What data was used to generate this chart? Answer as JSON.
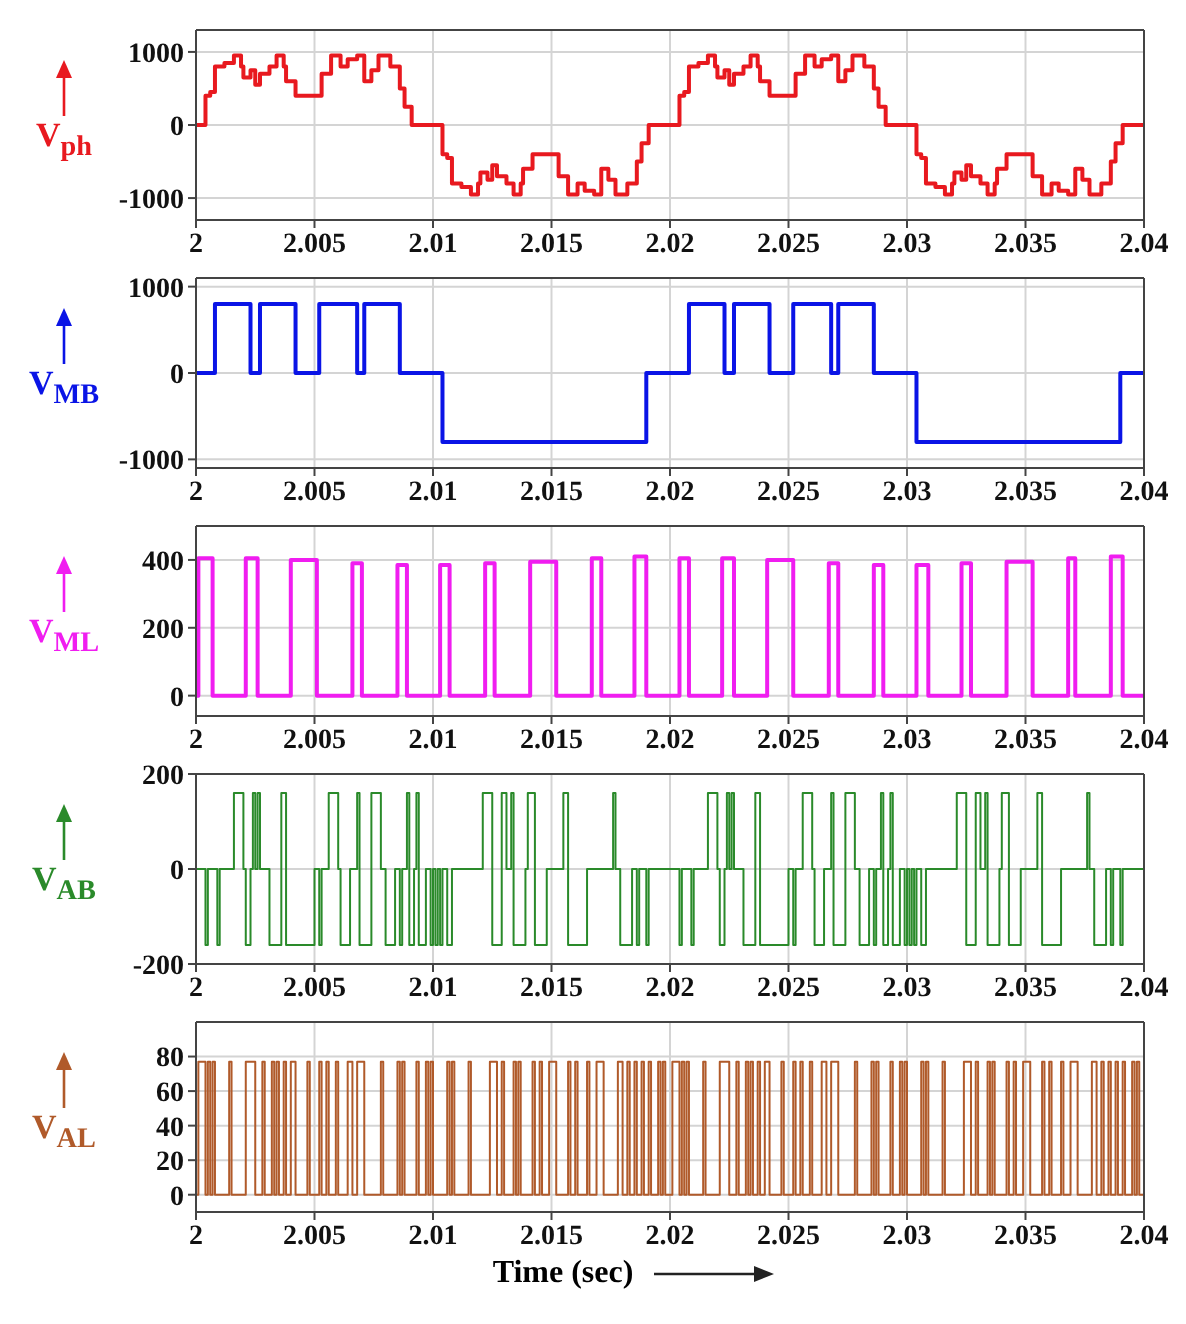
{
  "chart_data": [
    {
      "type": "step",
      "ylabel": "V$_{ph}$",
      "xlim": [
        2,
        2.04
      ],
      "ylim": [
        -1300,
        1300
      ],
      "xticks": [
        2,
        2.005,
        2.01,
        2.015,
        2.02,
        2.025,
        2.03,
        2.035,
        2.04
      ],
      "yticks": [
        -1000,
        0,
        1000
      ],
      "grid": true,
      "x": [
        2,
        2.0004,
        2.0006,
        2.0008,
        2.0012,
        2.0016,
        2.0019,
        2.002,
        2.0023,
        2.0025,
        2.0027,
        2.0031,
        2.0034,
        2.0037,
        2.0038,
        2.0042,
        2.0053,
        2.0057,
        2.0061,
        2.0064,
        2.0068,
        2.0071,
        2.0074,
        2.0077,
        2.0082,
        2.0086,
        2.0088,
        2.0091,
        2.01,
        2.0104,
        2.0106,
        2.0108,
        2.0112,
        2.0116,
        2.0119,
        2.012,
        2.0123,
        2.0125,
        2.0127,
        2.0131,
        2.0134,
        2.0137,
        2.0138,
        2.0142,
        2.0153,
        2.0157,
        2.0161,
        2.0164,
        2.0168,
        2.0171,
        2.0174,
        2.0177,
        2.0182,
        2.0186,
        2.0188,
        2.0191,
        2.02,
        2.0204,
        2.0206,
        2.0208,
        2.0212,
        2.0216,
        2.0219,
        2.022,
        2.0223,
        2.0225,
        2.0227,
        2.0231,
        2.0234,
        2.0237,
        2.0238,
        2.0242,
        2.0253,
        2.0257,
        2.0261,
        2.0264,
        2.0268,
        2.0271,
        2.0274,
        2.0277,
        2.0282,
        2.0286,
        2.0288,
        2.0291,
        2.03,
        2.0304,
        2.0306,
        2.0308,
        2.0312,
        2.0316,
        2.0319,
        2.032,
        2.0323,
        2.0325,
        2.0327,
        2.0331,
        2.0334,
        2.0337,
        2.0338,
        2.0342,
        2.0353,
        2.0357,
        2.0361,
        2.0364,
        2.0368,
        2.0371,
        2.0374,
        2.0377,
        2.0382,
        2.0386,
        2.0388,
        2.0391,
        2.04
      ],
      "series": [
        {
          "color": "#e8191f",
          "values": [
            0,
            400,
            450,
            800,
            850,
            950,
            800,
            650,
            750,
            550,
            700,
            800,
            950,
            800,
            600,
            400,
            700,
            950,
            800,
            900,
            950,
            600,
            750,
            950,
            800,
            500,
            250,
            0,
            0,
            -400,
            -450,
            -800,
            -850,
            -950,
            -800,
            -650,
            -750,
            -550,
            -700,
            -800,
            -950,
            -800,
            -600,
            -400,
            -700,
            -950,
            -800,
            -900,
            -950,
            -600,
            -750,
            -950,
            -800,
            -500,
            -250,
            0,
            0,
            400,
            450,
            800,
            850,
            950,
            800,
            650,
            750,
            550,
            700,
            800,
            950,
            800,
            600,
            400,
            700,
            950,
            800,
            900,
            950,
            600,
            750,
            950,
            800,
            500,
            250,
            0,
            0,
            -400,
            -450,
            -800,
            -850,
            -950,
            -800,
            -650,
            -750,
            -550,
            -700,
            -800,
            -950,
            -800,
            -600,
            -400,
            -700,
            -950,
            -800,
            -900,
            -950,
            -600,
            -750,
            -950,
            -800,
            -500,
            -250,
            0,
            0
          ]
        }
      ]
    },
    {
      "type": "step",
      "ylabel": "V$_{MB}$",
      "xlim": [
        2,
        2.04
      ],
      "ylim": [
        -1100,
        1100
      ],
      "xticks": [
        2,
        2.005,
        2.01,
        2.015,
        2.02,
        2.025,
        2.03,
        2.035,
        2.04
      ],
      "yticks": [
        -1000,
        0,
        1000
      ],
      "grid": true,
      "x": [
        2,
        2.0008,
        2.0023,
        2.0027,
        2.0042,
        2.0052,
        2.0068,
        2.0071,
        2.0086,
        2.0104,
        2.019,
        2.0208,
        2.0223,
        2.0227,
        2.0242,
        2.0252,
        2.0268,
        2.0271,
        2.0286,
        2.0304,
        2.039,
        2.04
      ],
      "series": [
        {
          "color": "#0a14e6",
          "values": [
            0,
            800,
            0,
            800,
            0,
            800,
            0,
            800,
            0,
            -800,
            0,
            800,
            0,
            800,
            0,
            800,
            0,
            800,
            0,
            -800,
            0,
            0
          ]
        }
      ]
    },
    {
      "type": "step",
      "ylabel": "V$_{ML}$",
      "xlim": [
        2,
        2.04
      ],
      "ylim": [
        -60,
        500
      ],
      "xticks": [
        2,
        2.005,
        2.01,
        2.015,
        2.02,
        2.025,
        2.03,
        2.035,
        2.04
      ],
      "yticks": [
        0,
        200,
        400
      ],
      "grid": true,
      "x": [
        2,
        2.0001,
        2.0007,
        2.0021,
        2.0026,
        2.004,
        2.0051,
        2.0066,
        2.007,
        2.0085,
        2.0089,
        2.0103,
        2.0107,
        2.0122,
        2.0126,
        2.0141,
        2.0152,
        2.0167,
        2.0171,
        2.0185,
        2.019,
        2.0204,
        2.0208,
        2.0222,
        2.0227,
        2.0241,
        2.0252,
        2.0267,
        2.0271,
        2.0286,
        2.029,
        2.0304,
        2.0309,
        2.0323,
        2.0327,
        2.0342,
        2.0353,
        2.0368,
        2.0371,
        2.0386,
        2.0391,
        2.04
      ],
      "series": [
        {
          "color": "#f01df0",
          "values": [
            0,
            405,
            0,
            405,
            0,
            400,
            0,
            390,
            0,
            385,
            0,
            385,
            0,
            390,
            0,
            395,
            0,
            405,
            0,
            410,
            0,
            405,
            0,
            405,
            0,
            400,
            0,
            390,
            0,
            385,
            0,
            385,
            0,
            390,
            0,
            395,
            0,
            405,
            0,
            410,
            0,
            0
          ]
        }
      ]
    },
    {
      "type": "step",
      "ylabel": "V$_{AB}$",
      "xlim": [
        2,
        2.04
      ],
      "ylim": [
        -200,
        200
      ],
      "xticks": [
        2,
        2.005,
        2.01,
        2.015,
        2.02,
        2.025,
        2.03,
        2.035,
        2.04
      ],
      "yticks": [
        -200,
        0,
        200
      ],
      "grid": true,
      "x": [
        2,
        2.0004,
        2.0005,
        2.0009,
        2.001,
        2.0016,
        2.002,
        2.0021,
        2.0023,
        2.0024,
        2.0025,
        2.0026,
        2.0027,
        2.0031,
        2.0036,
        2.0038,
        2.005,
        2.0052,
        2.0053,
        2.0056,
        2.006,
        2.0061,
        2.0065,
        2.0068,
        2.0069,
        2.0074,
        2.0078,
        2.008,
        2.0084,
        2.0086,
        2.0087,
        2.0089,
        2.009,
        2.0092,
        2.0093,
        2.0094,
        2.0097,
        2.0099,
        2.01,
        2.0101,
        2.0102,
        2.0103,
        2.0104,
        2.0106,
        2.0108,
        2.0121,
        2.0125,
        2.0129,
        2.0131,
        2.0133,
        2.0134,
        2.0139,
        2.014,
        2.0143,
        2.0148,
        2.0155,
        2.0157,
        2.0165,
        2.0176,
        2.0177,
        2.0179,
        2.0184,
        2.0186,
        2.0187,
        2.019,
        2.0191,
        2.02,
        2.0204,
        2.0205,
        2.0209,
        2.021,
        2.0216,
        2.022,
        2.0221,
        2.0223,
        2.0224,
        2.0225,
        2.0226,
        2.0227,
        2.0231,
        2.0236,
        2.0238,
        2.025,
        2.0252,
        2.0253,
        2.0256,
        2.026,
        2.0261,
        2.0265,
        2.0268,
        2.0269,
        2.0274,
        2.0278,
        2.028,
        2.0284,
        2.0286,
        2.0287,
        2.0289,
        2.029,
        2.0292,
        2.0293,
        2.0294,
        2.0297,
        2.0299,
        2.03,
        2.0301,
        2.0302,
        2.0303,
        2.0304,
        2.0306,
        2.0308,
        2.0321,
        2.0325,
        2.0329,
        2.0331,
        2.0333,
        2.0334,
        2.0339,
        2.034,
        2.0343,
        2.0348,
        2.0355,
        2.0357,
        2.0365,
        2.0376,
        2.0377,
        2.0379,
        2.0384,
        2.0386,
        2.0387,
        2.039,
        2.0391,
        2.04
      ],
      "series": [
        {
          "color": "#2a8a2a",
          "values": [
            0,
            -160,
            0,
            -160,
            0,
            160,
            0,
            -160,
            0,
            160,
            0,
            160,
            0,
            -160,
            160,
            -160,
            0,
            -160,
            0,
            160,
            0,
            -160,
            0,
            160,
            -160,
            160,
            0,
            -160,
            0,
            -160,
            0,
            160,
            -160,
            0,
            160,
            -160,
            0,
            -160,
            0,
            -160,
            0,
            -160,
            0,
            -160,
            0,
            160,
            -160,
            160,
            0,
            160,
            -160,
            0,
            160,
            -160,
            0,
            160,
            -160,
            0,
            160,
            0,
            -160,
            0,
            -160,
            0,
            -160,
            0,
            0,
            -160,
            0,
            -160,
            0,
            160,
            0,
            -160,
            0,
            160,
            0,
            160,
            0,
            -160,
            160,
            -160,
            0,
            -160,
            0,
            160,
            0,
            -160,
            0,
            160,
            -160,
            160,
            0,
            -160,
            0,
            -160,
            0,
            160,
            -160,
            0,
            160,
            -160,
            0,
            -160,
            0,
            -160,
            0,
            -160,
            0,
            -160,
            0,
            160,
            -160,
            160,
            0,
            160,
            -160,
            0,
            160,
            -160,
            0,
            160,
            -160,
            0,
            160,
            0,
            -160,
            0,
            -160,
            0,
            -160,
            0,
            0
          ]
        }
      ]
    },
    {
      "type": "step",
      "ylabel": "V$_{AL}$",
      "xlabel": "Time (sec)",
      "xlim": [
        2,
        2.04
      ],
      "ylim": [
        -10,
        100
      ],
      "xticks": [
        2,
        2.005,
        2.01,
        2.015,
        2.02,
        2.025,
        2.03,
        2.035,
        2.04
      ],
      "yticks": [
        0,
        20,
        40,
        60,
        80
      ],
      "grid": true,
      "x": [
        2,
        2.0001,
        2.0004,
        2.0005,
        2.0006,
        2.0007,
        2.0008,
        2.0014,
        2.0015,
        2.0021,
        2.0025,
        2.0028,
        2.0029,
        2.0032,
        2.0033,
        2.0034,
        2.0035,
        2.0037,
        2.0038,
        2.004,
        2.0042,
        2.0047,
        2.0048,
        2.0052,
        2.0053,
        2.0055,
        2.0056,
        2.0059,
        2.006,
        2.0064,
        2.0066,
        2.0068,
        2.0071,
        2.0078,
        2.0079,
        2.0085,
        2.0086,
        2.0087,
        2.0088,
        2.0093,
        2.0094,
        2.0097,
        2.0098,
        2.0099,
        2.01,
        2.0106,
        2.0107,
        2.0108,
        2.0109,
        2.0115,
        2.0116,
        2.0124,
        2.0127,
        2.0129,
        2.013,
        2.0134,
        2.0135,
        2.0136,
        2.0137,
        2.0142,
        2.0143,
        2.0145,
        2.0146,
        2.0149,
        2.0152,
        2.0157,
        2.0158,
        2.016,
        2.0161,
        2.0165,
        2.0166,
        2.0169,
        2.0172,
        2.0178,
        2.018,
        2.0182,
        2.0183,
        2.0185,
        2.0186,
        2.0188,
        2.0189,
        2.0191,
        2.0192,
        2.0195,
        2.0196,
        2.0197,
        2.0198,
        2.0201,
        2.0204,
        2.0205,
        2.0206,
        2.0207,
        2.0208,
        2.0214,
        2.0215,
        2.0221,
        2.0225,
        2.0228,
        2.0229,
        2.0232,
        2.0233,
        2.0234,
        2.0235,
        2.0237,
        2.0238,
        2.024,
        2.0242,
        2.0247,
        2.0248,
        2.0252,
        2.0253,
        2.0255,
        2.0256,
        2.0259,
        2.026,
        2.0264,
        2.0266,
        2.0268,
        2.0271,
        2.0278,
        2.0279,
        2.0285,
        2.0286,
        2.0287,
        2.0288,
        2.0293,
        2.0294,
        2.0297,
        2.0298,
        2.0299,
        2.03,
        2.0306,
        2.0307,
        2.0308,
        2.0309,
        2.0315,
        2.0316,
        2.0324,
        2.0327,
        2.0329,
        2.033,
        2.0334,
        2.0335,
        2.0336,
        2.0337,
        2.0342,
        2.0343,
        2.0345,
        2.0346,
        2.0349,
        2.0352,
        2.0357,
        2.0358,
        2.036,
        2.0361,
        2.0365,
        2.0366,
        2.0369,
        2.0372,
        2.0378,
        2.038,
        2.0382,
        2.0383,
        2.0385,
        2.0386,
        2.0388,
        2.0389,
        2.0391,
        2.0392,
        2.0395,
        2.0396,
        2.0397,
        2.0398,
        2.04
      ],
      "series": [
        {
          "color": "#b05a2a",
          "values": [
            0,
            77,
            0,
            77,
            0,
            77,
            0,
            77,
            0,
            77,
            0,
            77,
            0,
            77,
            0,
            77,
            0,
            77,
            0,
            77,
            0,
            77,
            0,
            77,
            0,
            77,
            0,
            77,
            0,
            77,
            0,
            77,
            0,
            77,
            0,
            77,
            0,
            77,
            0,
            77,
            0,
            77,
            0,
            77,
            0,
            77,
            0,
            77,
            0,
            77,
            0,
            77,
            0,
            77,
            0,
            77,
            0,
            77,
            0,
            77,
            0,
            77,
            0,
            77,
            0,
            77,
            0,
            77,
            0,
            77,
            0,
            77,
            0,
            77,
            0,
            77,
            0,
            77,
            0,
            77,
            0,
            77,
            0,
            77,
            0,
            77,
            0,
            77,
            0,
            77,
            0,
            77,
            0,
            77,
            0,
            77,
            0,
            77,
            0,
            77,
            0,
            77,
            0,
            77,
            0,
            77,
            0,
            77,
            0,
            77,
            0,
            77,
            0,
            77,
            0,
            77,
            0,
            77,
            0,
            77,
            0,
            77,
            0,
            77,
            0,
            77,
            0,
            77,
            0,
            77,
            0,
            77,
            0,
            77,
            0,
            77,
            0,
            77,
            0,
            77,
            0,
            77,
            0,
            77,
            0,
            77,
            0,
            77,
            0,
            77,
            0,
            77,
            0,
            77,
            0,
            77,
            0,
            77,
            0,
            77,
            0,
            77,
            0,
            77,
            0,
            77,
            0,
            77,
            0,
            77,
            0,
            77,
            0,
            0
          ]
        }
      ]
    }
  ]
}
